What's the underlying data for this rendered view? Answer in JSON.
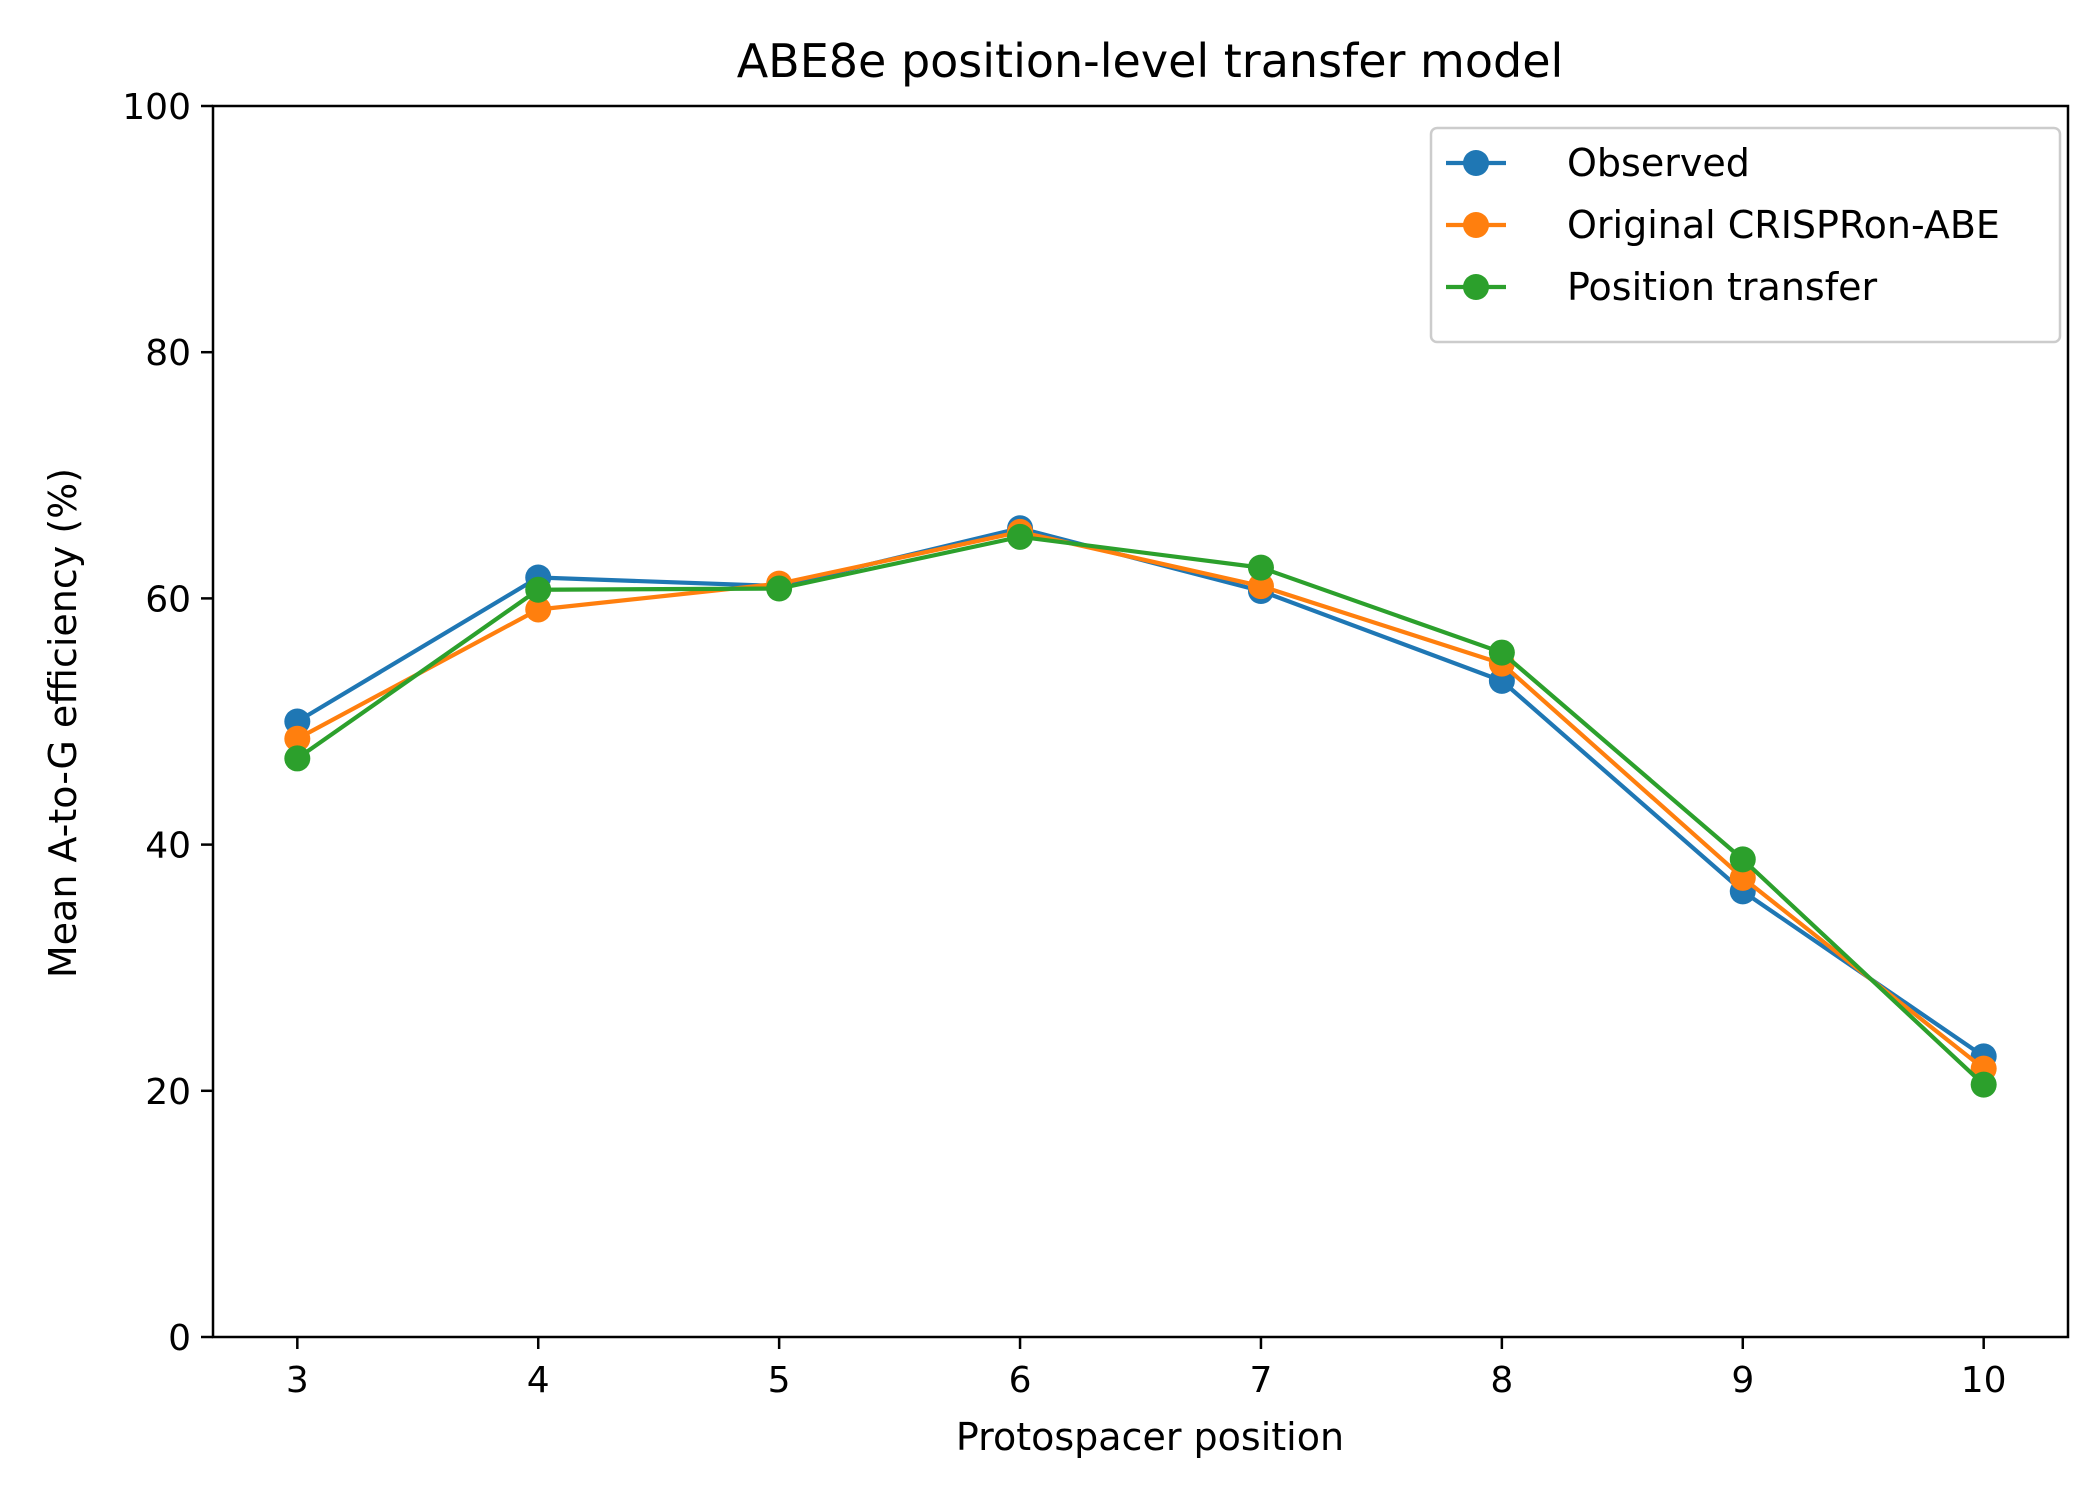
{
  "chart_data": {
    "type": "line",
    "title": "ABE8e position-level transfer model",
    "xlabel": "Protospacer position",
    "ylabel": "Mean A-to-G efficiency (%)",
    "x": [
      3,
      4,
      5,
      6,
      7,
      8,
      9,
      10
    ],
    "xlim": [
      2.65,
      10.35
    ],
    "ylim": [
      0,
      100
    ],
    "xticks": [
      3,
      4,
      5,
      6,
      7,
      8,
      9,
      10
    ],
    "yticks": [
      0,
      20,
      40,
      60,
      80,
      100
    ],
    "grid": false,
    "legend_position": "top-right",
    "marker": "circle",
    "series": [
      {
        "name": "Observed",
        "color": "#1f77b4",
        "values": [
          50.0,
          61.7,
          61.0,
          65.7,
          60.6,
          53.3,
          36.2,
          22.8
        ]
      },
      {
        "name": "Original CRISPRon-ABE",
        "color": "#ff7f0e",
        "values": [
          48.6,
          59.1,
          61.2,
          65.4,
          61.0,
          54.7,
          37.3,
          21.8
        ]
      },
      {
        "name": "Position transfer",
        "color": "#2ca02c",
        "values": [
          47.0,
          60.7,
          60.8,
          65.0,
          62.5,
          55.6,
          38.8,
          20.5
        ]
      }
    ]
  }
}
